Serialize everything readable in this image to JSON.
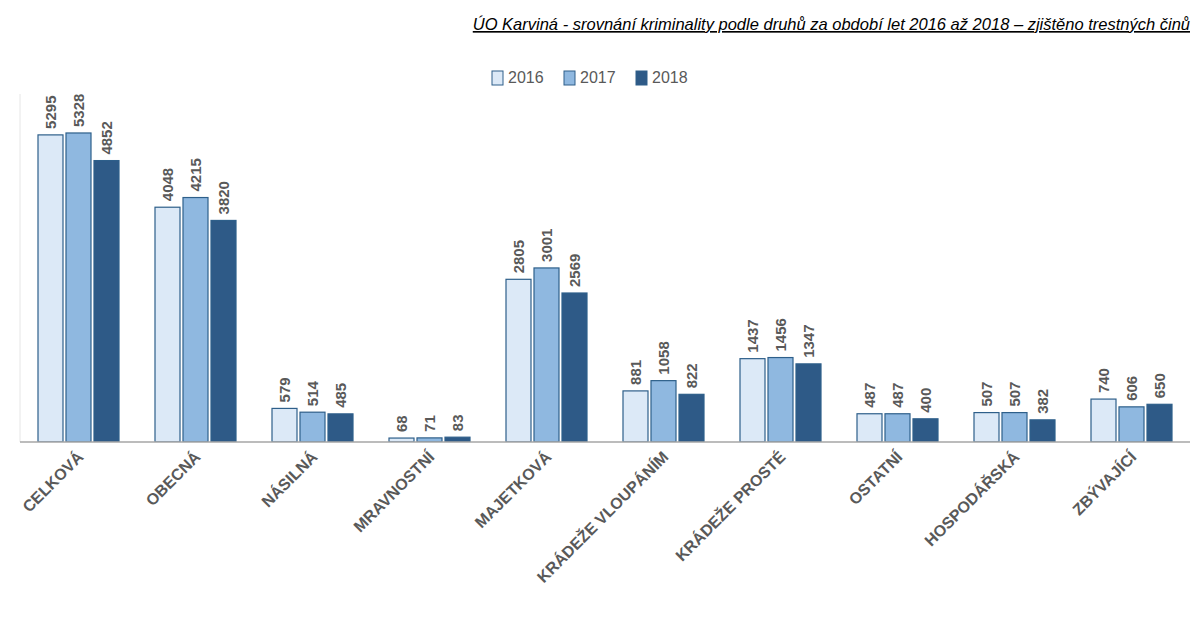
{
  "chart_data": {
    "type": "bar",
    "title": "ÚO Karviná - srovnání kriminality podle druhů za období let 2016 až 2018 – zjištěno trestných činů",
    "categories": [
      "CELKOVÁ",
      "OBECNÁ",
      "NÁSILNÁ",
      "MRAVNOSTNÍ",
      "MAJETKOVÁ",
      "KRÁDEŽE VLOUPÁNÍM",
      "KRÁDEŽE PROSTÉ",
      "OSTATNÍ",
      "HOSPODÁŘSKÁ",
      "ZBÝVAJÍCÍ"
    ],
    "series": [
      {
        "name": "2016",
        "color": "#dce9f7",
        "values": [
          5295,
          4048,
          579,
          68,
          2805,
          881,
          1437,
          487,
          507,
          740
        ]
      },
      {
        "name": "2017",
        "color": "#8fb8e0",
        "values": [
          5328,
          4215,
          514,
          71,
          3001,
          1058,
          1456,
          487,
          507,
          606
        ]
      },
      {
        "name": "2018",
        "color": "#2e5a87",
        "values": [
          4852,
          3820,
          485,
          83,
          2569,
          822,
          1347,
          400,
          382,
          650
        ]
      }
    ],
    "ylim": [
      0,
      6000
    ],
    "grid": false,
    "legend": "top",
    "data_labels": true,
    "tick_labels": "x"
  }
}
